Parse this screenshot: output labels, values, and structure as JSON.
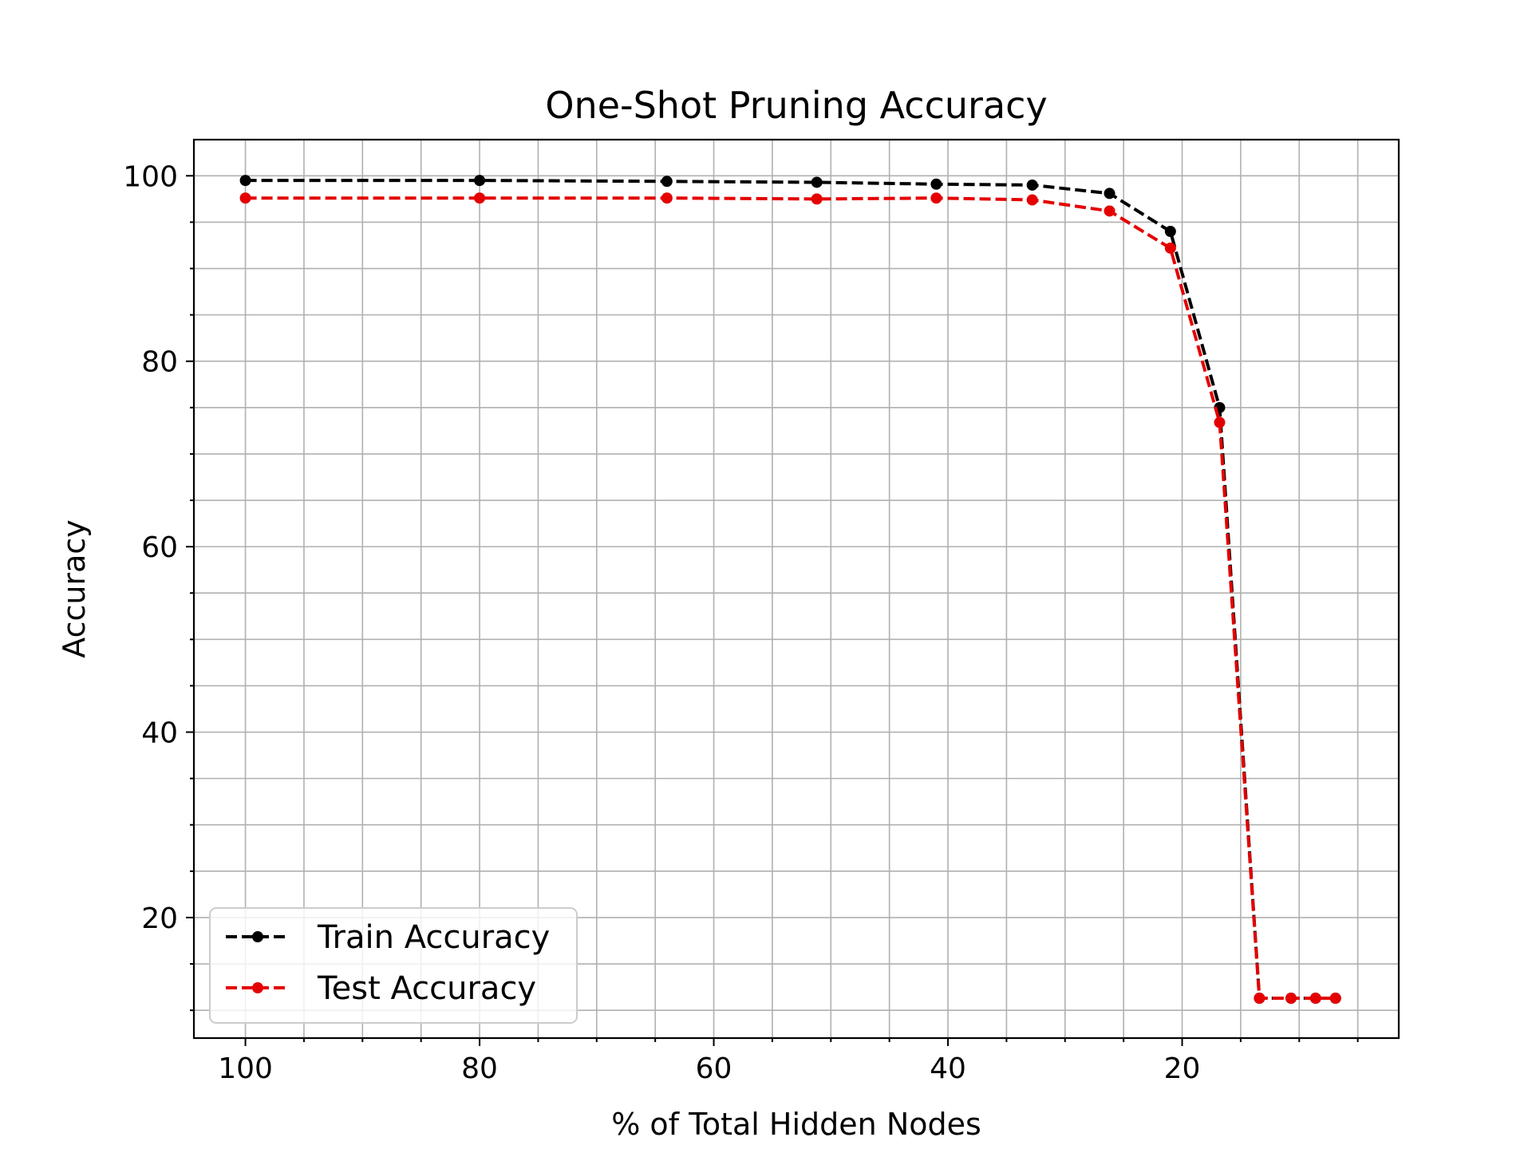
{
  "chart_data": {
    "type": "line",
    "title": "One-Shot Pruning Accuracy",
    "xlabel": "% of Total Hidden Nodes",
    "ylabel": "Accuracy",
    "x_inverted": true,
    "xlim": [
      104.4,
      1.5
    ],
    "ylim": [
      7.0,
      103.9
    ],
    "grid": true,
    "legend_position": "lower-left",
    "x_ticks": [
      100,
      80,
      60,
      40,
      20
    ],
    "x_tick_labels": [
      "100",
      "80",
      "60",
      "40",
      "20"
    ],
    "y_ticks": [
      20,
      40,
      60,
      80,
      100
    ],
    "y_tick_labels": [
      "20",
      "40",
      "60",
      "80",
      "100"
    ],
    "x_minor_ticks": [
      95,
      90,
      85,
      75,
      70,
      65,
      55,
      50,
      45,
      35,
      30,
      25,
      15,
      10,
      5
    ],
    "y_minor_ticks": [
      10,
      15,
      25,
      30,
      35,
      45,
      50,
      55,
      65,
      70,
      75,
      85,
      90,
      95
    ],
    "x": [
      100,
      80,
      64,
      51.2,
      41,
      32.8,
      26.2,
      21,
      16.8,
      13.4,
      10.7,
      8.6,
      6.9
    ],
    "series": [
      {
        "name": "Train Accuracy",
        "color": "#000000",
        "values": [
          99.5,
          99.5,
          99.4,
          99.3,
          99.1,
          99.0,
          98.1,
          94.0,
          75.0,
          11.3,
          11.3,
          11.3,
          11.3
        ]
      },
      {
        "name": "Test Accuracy",
        "color": "#e50000",
        "values": [
          97.6,
          97.6,
          97.6,
          97.5,
          97.6,
          97.4,
          96.2,
          92.2,
          73.4,
          11.3,
          11.3,
          11.3,
          11.3
        ]
      }
    ]
  }
}
